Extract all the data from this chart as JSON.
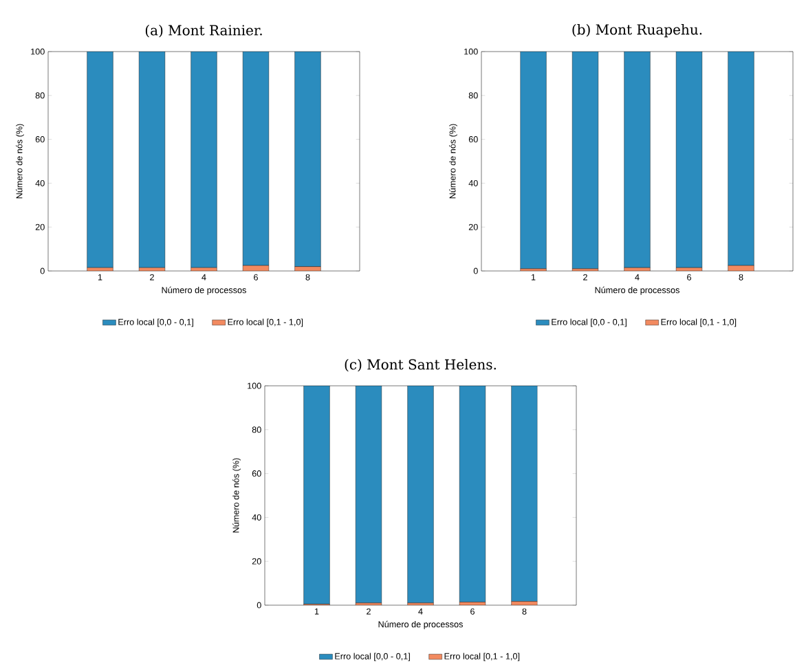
{
  "chart_data": [
    {
      "type": "bar",
      "title": "(a) Mont Rainier.",
      "xlabel": "Número de processos",
      "ylabel": "Número de nós (%)",
      "categories": [
        "1",
        "2",
        "4",
        "6",
        "8"
      ],
      "stacked": true,
      "ylim": [
        0,
        100
      ],
      "yticks": [
        0,
        20,
        40,
        60,
        80,
        100
      ],
      "legend": "bottom",
      "series": [
        {
          "name": "Erro local [0,1 - 1,0]",
          "color": "#f28a60",
          "values": [
            1.5,
            1.5,
            1.5,
            2.5,
            2.0
          ]
        },
        {
          "name": "Erro local [0,0 - 0,1]",
          "color": "#2b8cbe",
          "values": [
            98.5,
            98.5,
            98.5,
            97.5,
            98.0
          ]
        }
      ]
    },
    {
      "type": "bar",
      "title": "(b) Mont Ruapehu.",
      "xlabel": "Número de processos",
      "ylabel": "Número de nós (%)",
      "categories": [
        "1",
        "2",
        "4",
        "6",
        "8"
      ],
      "stacked": true,
      "ylim": [
        0,
        100
      ],
      "yticks": [
        0,
        20,
        40,
        60,
        80,
        100
      ],
      "legend": "bottom",
      "series": [
        {
          "name": "Erro local [0,1 - 1,0]",
          "color": "#f28a60",
          "values": [
            1.0,
            1.0,
            1.5,
            1.5,
            2.5
          ]
        },
        {
          "name": "Erro local [0,0 - 0,1]",
          "color": "#2b8cbe",
          "values": [
            99.0,
            99.0,
            98.5,
            98.5,
            97.5
          ]
        }
      ]
    },
    {
      "type": "bar",
      "title": "(c) Mont Sant Helens.",
      "xlabel": "Número de processos",
      "ylabel": "Número de nós (%)",
      "categories": [
        "1",
        "2",
        "4",
        "6",
        "8"
      ],
      "stacked": true,
      "ylim": [
        0,
        100
      ],
      "yticks": [
        0,
        20,
        40,
        60,
        80,
        100
      ],
      "legend": "bottom",
      "series": [
        {
          "name": "Erro local [0,1 - 1,0]",
          "color": "#f28a60",
          "values": [
            0.5,
            1.0,
            1.0,
            1.4,
            1.7
          ]
        },
        {
          "name": "Erro local [0,0 - 0,1]",
          "color": "#2b8cbe",
          "values": [
            99.5,
            99.0,
            99.0,
            98.6,
            98.3
          ]
        }
      ]
    }
  ]
}
